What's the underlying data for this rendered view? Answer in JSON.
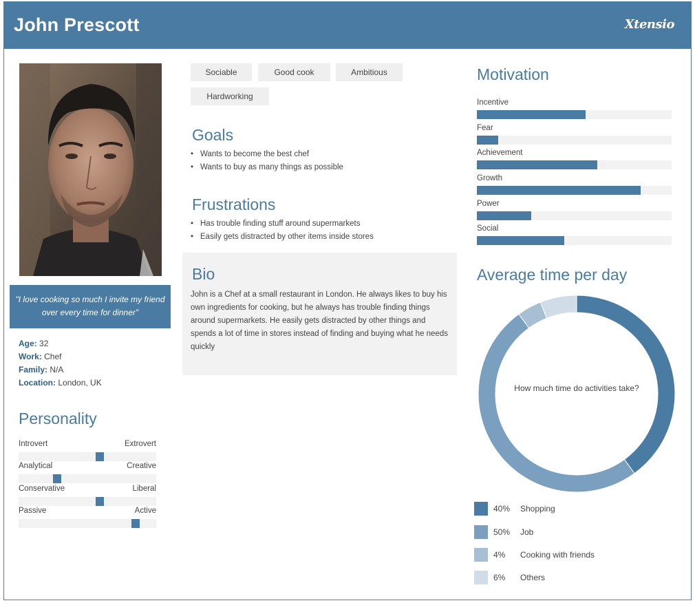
{
  "header": {
    "name": "John Prescott",
    "logo": "Xtensio"
  },
  "profile": {
    "quote": "\"I love cooking so much I invite my friend over every time for dinner\"",
    "age_label": "Age:",
    "age": "32",
    "work_label": "Work:",
    "work": "Chef",
    "family_label": "Family:",
    "family": "N/A",
    "location_label": "Location:",
    "location": "London, UK"
  },
  "personality": {
    "title": "Personality",
    "rows": [
      {
        "left": "Introvert",
        "right": "Extrovert",
        "value": 0.59
      },
      {
        "left": "Analytical",
        "right": "Creative",
        "value": 0.28
      },
      {
        "left": "Conservative",
        "right": "Liberal",
        "value": 0.59
      },
      {
        "left": "Passive",
        "right": "Active",
        "value": 0.85
      }
    ]
  },
  "tags": [
    "Sociable",
    "Good cook",
    "Ambitious",
    "Hardworking"
  ],
  "goals": {
    "title": "Goals",
    "items": [
      "Wants to become the best chef",
      "Wants to buy as many things as possible"
    ]
  },
  "frustrations": {
    "title": "Frustrations",
    "items": [
      "Has trouble finding stuff around supermarkets",
      "Easily gets distracted by other items inside stores"
    ]
  },
  "bio": {
    "title": "Bio",
    "text": "John is a Chef at a small restaurant in London. He always likes to buy his own ingredients for cooking, but he always has trouble finding things around supermarkets. He easily gets distracted by other things and spends a lot of time in stores instead of finding and buying what he needs quickly"
  },
  "motivation": {
    "title": "Motivation",
    "rows": [
      {
        "label": "Incentive",
        "value": 0.56
      },
      {
        "label": "Fear",
        "value": 0.11
      },
      {
        "label": "Achievement",
        "value": 0.62
      },
      {
        "label": "Growth",
        "value": 0.84
      },
      {
        "label": "Power",
        "value": 0.28
      },
      {
        "label": "Social",
        "value": 0.45
      }
    ]
  },
  "time": {
    "title": "Average time per day",
    "center_text": "How much time do activities take?"
  },
  "chart_data": {
    "type": "pie",
    "title": "Average time per day",
    "categories": [
      "Shopping",
      "Job",
      "Cooking with friends",
      "Others"
    ],
    "values": [
      40,
      50,
      4,
      6
    ],
    "value_labels": [
      "40%",
      "50%",
      "4%",
      "6%"
    ],
    "colors": [
      "#4a7ba2",
      "#7a9fbf",
      "#a7bfd3",
      "#d0dde8"
    ],
    "legend": "bottom"
  },
  "colors": {
    "accent": "#4a7ba2",
    "track": "#f2f2f2",
    "panel": "#f2f2f2"
  }
}
